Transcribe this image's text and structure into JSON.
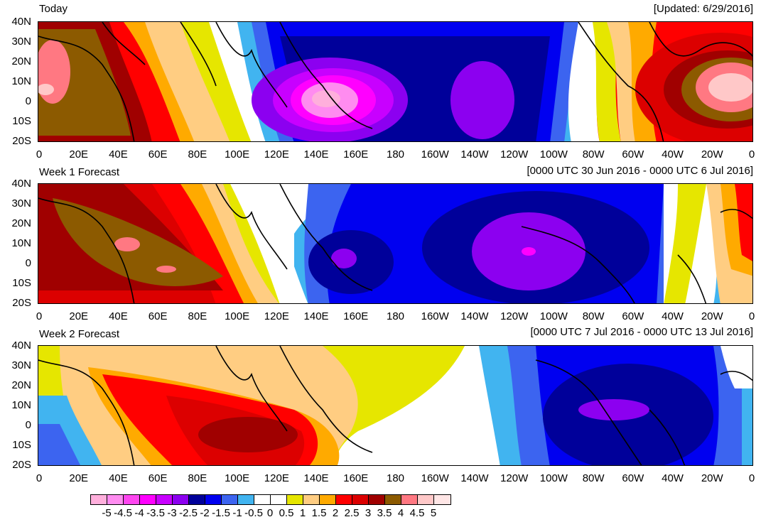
{
  "header": {
    "today_title": "Today",
    "updated": "[Updated: 6/29/2016]"
  },
  "panels": [
    {
      "title": "Today",
      "date": "[Updated: 6/29/2016]"
    },
    {
      "title": "Week 1 Forecast",
      "date": "[0000 UTC 30 Jun 2016 - 0000 UTC 6 Jul 2016]"
    },
    {
      "title": "Week 2 Forecast",
      "date": "[0000 UTC 7 Jul 2016 - 0000 UTC 13 Jul 2016]"
    }
  ],
  "y_axis_labels": [
    "40N",
    "30N",
    "20N",
    "10N",
    "0",
    "10S",
    "20S"
  ],
  "x_axis_labels": [
    "0",
    "20E",
    "40E",
    "60E",
    "80E",
    "100E",
    "120E",
    "140E",
    "160E",
    "180",
    "160W",
    "140W",
    "120W",
    "100W",
    "80W",
    "60W",
    "40W",
    "20W",
    "0"
  ],
  "legend": {
    "labels": [
      "-5",
      "-4.5",
      "-4",
      "-3.5",
      "-3",
      "-2.5",
      "-2",
      "-1.5",
      "-1",
      "-0.5",
      "0",
      "0.5",
      "1",
      "1.5",
      "2",
      "2.5",
      "3",
      "3.5",
      "4",
      "4.5",
      "5"
    ],
    "colors": [
      "#ffafdc",
      "#ff8cf0",
      "#ff46f0",
      "#ff00ff",
      "#c800ff",
      "#8c00f0",
      "#00009a",
      "#0000f0",
      "#3c64f0",
      "#41b4f0",
      "#ffffff",
      "#ffffff",
      "#e6e600",
      "#ffcd82",
      "#ffaa00",
      "#ff0000",
      "#dc0000",
      "#a00000",
      "#8c5a00",
      "#ff7882",
      "#ffc8c8",
      "#ffe6e6"
    ]
  }
}
